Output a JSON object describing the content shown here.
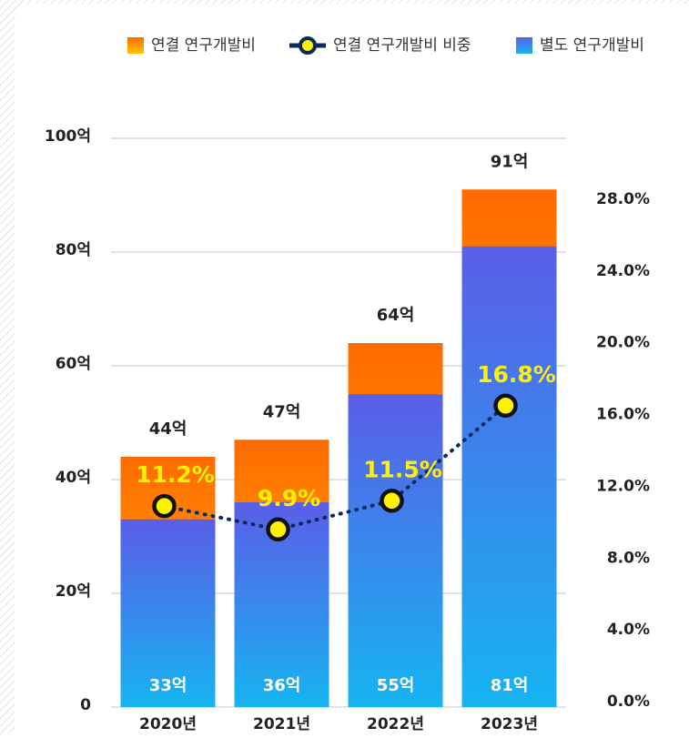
{
  "chart_data": {
    "type": "bar_line",
    "categories": [
      "2020년",
      "2021년",
      "2022년",
      "2023년"
    ],
    "series": [
      {
        "name": "연결 연구개발비",
        "color": "#ff6a00",
        "values": [
          44,
          47,
          64,
          91
        ],
        "value_labels": [
          "44억",
          "47억",
          "64억",
          "91억"
        ]
      },
      {
        "name": "연결 연구개발비 비중",
        "type": "line",
        "axis": "y2",
        "color": "#0d2a5e",
        "marker_color": "#fff200",
        "values": [
          11.2,
          9.9,
          11.5,
          16.8
        ],
        "value_labels": [
          "11.2%",
          "9.9%",
          "11.5%",
          "16.8%"
        ]
      },
      {
        "name": "별도 연구개발비",
        "color": "#5a5ee8",
        "values": [
          33,
          36,
          55,
          81
        ],
        "value_labels": [
          "33억",
          "36억",
          "55억",
          "81억"
        ]
      }
    ],
    "ylim": [
      0,
      100
    ],
    "yticks": [
      {
        "value": 0,
        "label": "0"
      },
      {
        "value": 20,
        "label": "20억"
      },
      {
        "value": 40,
        "label": "40억"
      },
      {
        "value": 60,
        "label": "60억"
      },
      {
        "value": 80,
        "label": "80억"
      },
      {
        "value": 100,
        "label": "100억"
      }
    ],
    "y2lim": [
      0,
      31.7
    ],
    "y2ticks": [
      {
        "value": 0,
        "label": "0.0%"
      },
      {
        "value": 4,
        "label": "4.0%"
      },
      {
        "value": 8,
        "label": "8.0%"
      },
      {
        "value": 12,
        "label": "12.0%"
      },
      {
        "value": 16,
        "label": "16.0%"
      },
      {
        "value": 20,
        "label": "20.0%"
      },
      {
        "value": 24,
        "label": "24.0%"
      },
      {
        "value": 28,
        "label": "28.0%"
      }
    ],
    "grid": true
  }
}
